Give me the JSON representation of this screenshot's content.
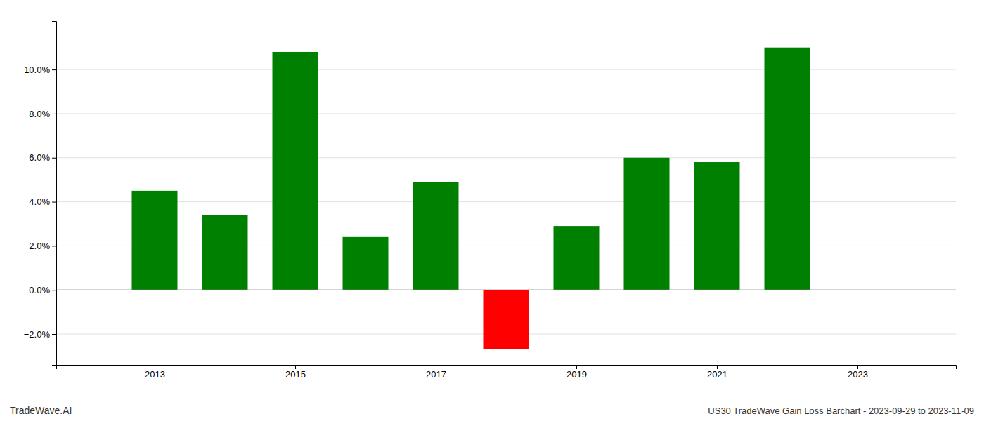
{
  "chart_data": {
    "type": "bar",
    "x": [
      2013,
      2014,
      2015,
      2016,
      2017,
      2018,
      2019,
      2020,
      2021,
      2022
    ],
    "values": [
      0.045,
      0.034,
      0.108,
      0.024,
      0.049,
      -0.027,
      0.029,
      0.06,
      0.058,
      0.11
    ],
    "colors": [
      "#008000",
      "#008000",
      "#008000",
      "#008000",
      "#008000",
      "#ff0000",
      "#008000",
      "#008000",
      "#008000",
      "#008000"
    ],
    "xlim": [
      2011.6,
      2024.4
    ],
    "xticks": [
      2013,
      2015,
      2017,
      2019,
      2021,
      2023
    ],
    "ylim": [
      -0.034,
      0.122
    ],
    "yticks": [
      {
        "value": -0.02,
        "label": "−2.0%"
      },
      {
        "value": 0.0,
        "label": "0.0%"
      },
      {
        "value": 0.02,
        "label": "2.0%"
      },
      {
        "value": 0.04,
        "label": "4.0%"
      },
      {
        "value": 0.06,
        "label": "6.0%"
      },
      {
        "value": 0.08,
        "label": "8.0%"
      },
      {
        "value": 0.1,
        "label": "10.0%"
      }
    ],
    "grid": true,
    "annotations": [
      "TradeWave.AI",
      "US30 TradeWave Gain Loss Barchart - 2023-09-29 to 2023-11-09"
    ]
  }
}
